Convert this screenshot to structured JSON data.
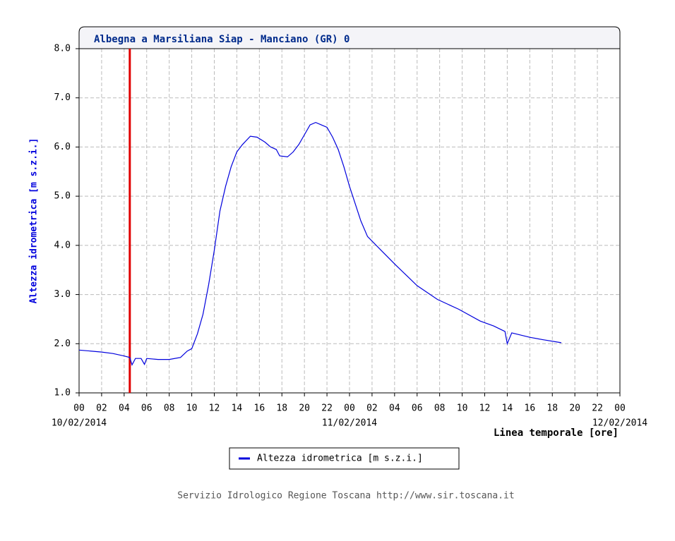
{
  "chart_data": {
    "type": "line",
    "title": "Albegna a Marsiliana Siap - Manciano (GR) 0",
    "y_label": "Altezza idrometrica [m s.z.i.]",
    "x_label": "Linea temporale [ore]",
    "footer": "Servizio Idrologico Regione Toscana http://www.sir.toscana.it",
    "grid": true,
    "xlim": [
      0,
      48
    ],
    "ylim": [
      1,
      8
    ],
    "xticks": [
      {
        "value": 0,
        "label": "00"
      },
      {
        "value": 2,
        "label": "02"
      },
      {
        "value": 4,
        "label": "04"
      },
      {
        "value": 6,
        "label": "06"
      },
      {
        "value": 8,
        "label": "08"
      },
      {
        "value": 10,
        "label": "10"
      },
      {
        "value": 12,
        "label": "12"
      },
      {
        "value": 14,
        "label": "14"
      },
      {
        "value": 16,
        "label": "16"
      },
      {
        "value": 18,
        "label": "18"
      },
      {
        "value": 20,
        "label": "20"
      },
      {
        "value": 22,
        "label": "22"
      },
      {
        "value": 24,
        "label": "00"
      },
      {
        "value": 26,
        "label": "02"
      },
      {
        "value": 28,
        "label": "04"
      },
      {
        "value": 30,
        "label": "06"
      },
      {
        "value": 32,
        "label": "08"
      },
      {
        "value": 34,
        "label": "10"
      },
      {
        "value": 36,
        "label": "12"
      },
      {
        "value": 38,
        "label": "14"
      },
      {
        "value": 40,
        "label": "16"
      },
      {
        "value": 42,
        "label": "18"
      },
      {
        "value": 44,
        "label": "20"
      },
      {
        "value": 46,
        "label": "22"
      },
      {
        "value": 48,
        "label": "00"
      }
    ],
    "xdate_labels": [
      {
        "value": 0,
        "label": "10/02/2014"
      },
      {
        "value": 24,
        "label": "11/02/2014"
      },
      {
        "value": 48,
        "label": "12/02/2014"
      }
    ],
    "yticks": [
      {
        "value": 1,
        "label": "1.0"
      },
      {
        "value": 2,
        "label": "2.0"
      },
      {
        "value": 3,
        "label": "3.0"
      },
      {
        "value": 4,
        "label": "4.0"
      },
      {
        "value": 5,
        "label": "5.0"
      },
      {
        "value": 6,
        "label": "6.0"
      },
      {
        "value": 7,
        "label": "7.0"
      },
      {
        "value": 8,
        "label": "8.0"
      }
    ],
    "marker_x": 4.5,
    "marker_color": "#e00000",
    "x": [
      0,
      2,
      3,
      4,
      4.5,
      4.7,
      5,
      5.5,
      5.8,
      6,
      7,
      8,
      9,
      9.6,
      10,
      10.5,
      11,
      11.5,
      12,
      12.5,
      13,
      13.5,
      14,
      14.5,
      15.2,
      15.8,
      16.5,
      17,
      17.5,
      17.8,
      18.5,
      19,
      19.5,
      20,
      20.5,
      21,
      21.5,
      22,
      22.5,
      23,
      23.5,
      24,
      24.5,
      25,
      25.6,
      26.8,
      28.1,
      30,
      31.8,
      33.7,
      35.6,
      36.8,
      37.8,
      38,
      38.4,
      40,
      41.2,
      42.8
    ],
    "series": [
      {
        "name": "Altezza idrometrica [m s.z.i.]",
        "color": "#0000dd",
        "values": [
          1.87,
          1.83,
          1.8,
          1.75,
          1.72,
          1.57,
          1.7,
          1.7,
          1.58,
          1.7,
          1.68,
          1.68,
          1.72,
          1.85,
          1.9,
          2.2,
          2.6,
          3.2,
          3.9,
          4.7,
          5.2,
          5.6,
          5.9,
          6.05,
          6.22,
          6.2,
          6.1,
          6.0,
          5.95,
          5.82,
          5.8,
          5.9,
          6.05,
          6.25,
          6.45,
          6.5,
          6.45,
          6.4,
          6.2,
          5.95,
          5.6,
          5.2,
          4.85,
          4.5,
          4.18,
          3.9,
          3.6,
          3.18,
          2.9,
          2.7,
          2.46,
          2.36,
          2.25,
          2.0,
          2.22,
          2.13,
          2.08,
          2.02
        ]
      }
    ]
  }
}
